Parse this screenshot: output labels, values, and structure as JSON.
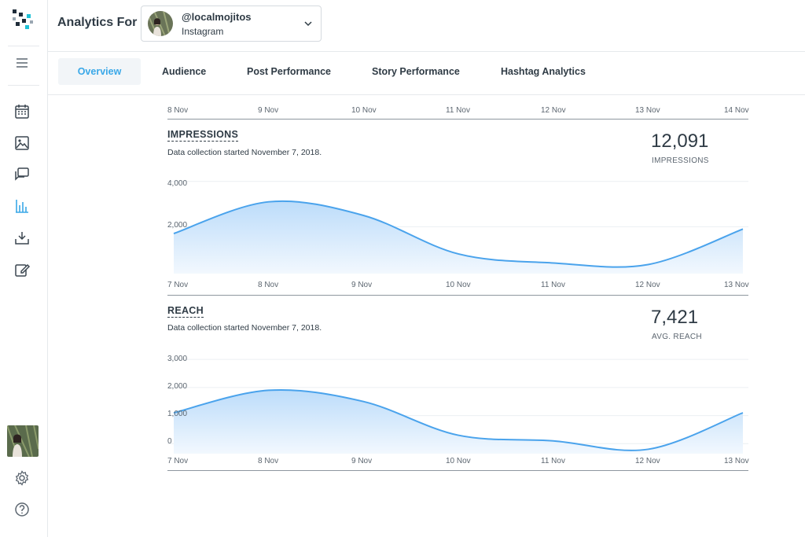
{
  "header": {
    "title": "Analytics For",
    "account": {
      "handle": "@localmojitos",
      "platform": "Instagram"
    }
  },
  "sidebar": {
    "items": [
      {
        "name": "menu-icon"
      },
      {
        "name": "calendar-icon"
      },
      {
        "name": "image-icon"
      },
      {
        "name": "comments-icon"
      },
      {
        "name": "analytics-icon"
      },
      {
        "name": "download-icon"
      },
      {
        "name": "edit-icon"
      },
      {
        "name": "settings-icon"
      },
      {
        "name": "help-icon"
      }
    ]
  },
  "tabs": [
    {
      "label": "Overview",
      "active": true
    },
    {
      "label": "Audience",
      "active": false
    },
    {
      "label": "Post Performance",
      "active": false
    },
    {
      "label": "Story Performance",
      "active": false
    },
    {
      "label": "Hashtag Analytics",
      "active": false
    }
  ],
  "top_axis": [
    "8 Nov",
    "9 Nov",
    "10 Nov",
    "11 Nov",
    "12 Nov",
    "13 Nov",
    "14 Nov"
  ],
  "impressions": {
    "title": "IMPRESSIONS",
    "note": "Data collection started November 7, 2018.",
    "value": "12,091",
    "caption": "IMPRESSIONS"
  },
  "reach": {
    "title": "REACH",
    "note": "Data collection started November 7, 2018.",
    "value": "7,421",
    "caption": "AVG. REACH"
  },
  "colors": {
    "accent": "#3aa8e8",
    "line": "#4aa3ec",
    "fill_top": "#bcdcfa",
    "fill_bottom": "#f2f8fe"
  },
  "chart_data": [
    {
      "type": "area",
      "title": "IMPRESSIONS",
      "categories": [
        "7 Nov",
        "8 Nov",
        "9 Nov",
        "10 Nov",
        "11 Nov",
        "12 Nov",
        "13 Nov"
      ],
      "values": [
        1700,
        3100,
        2500,
        800,
        400,
        330,
        1900
      ],
      "yticks": [
        "4,000",
        "2,000"
      ],
      "ytick_values": [
        4000,
        2000
      ],
      "ylim": [
        0,
        4200
      ]
    },
    {
      "type": "area",
      "title": "REACH",
      "categories": [
        "7 Nov",
        "8 Nov",
        "9 Nov",
        "10 Nov",
        "11 Nov",
        "12 Nov",
        "13 Nov"
      ],
      "values": [
        1100,
        1900,
        1500,
        300,
        100,
        -200,
        1100
      ],
      "yticks": [
        "3,000",
        "2,000",
        "1,000",
        "0"
      ],
      "ytick_values": [
        3000,
        2000,
        1000,
        0
      ],
      "ylim": [
        -300,
        3200
      ]
    }
  ]
}
